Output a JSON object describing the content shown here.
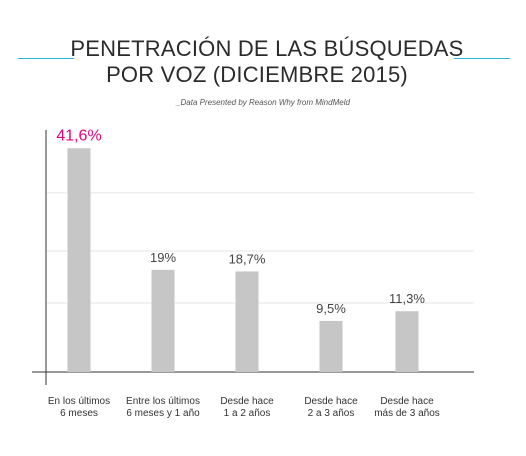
{
  "chart_data": {
    "type": "bar",
    "title_line1": "PENETRACIÓN DE LAS BÚSQUEDAS",
    "title_line2": "POR VOZ (DICIEMBRE 2015)",
    "subtitle": "_Data Presented by Reason Why from MindMeld",
    "categories": [
      [
        "En los últimos",
        "6 meses"
      ],
      [
        "Entre los últimos",
        "6 meses y 1 año"
      ],
      [
        "Desde hace",
        "1 a 2 años"
      ],
      [
        "Desde hace",
        "2 a 3 años"
      ],
      [
        "Desde hace",
        "más de 3 años"
      ]
    ],
    "values": [
      41.6,
      19,
      18.7,
      9.5,
      11.3
    ],
    "data_labels": [
      "41,6%",
      "19%",
      "18,7%",
      "9,5%",
      "11,3%"
    ],
    "ylim": [
      0,
      45
    ],
    "grid": true,
    "colors": {
      "bar": "#c6c6c6",
      "highlight_label": "#e6007e",
      "label": "#444444",
      "accent_line": "#29b6d9",
      "grid": "#e6e6e6",
      "axis": "#333333"
    }
  }
}
